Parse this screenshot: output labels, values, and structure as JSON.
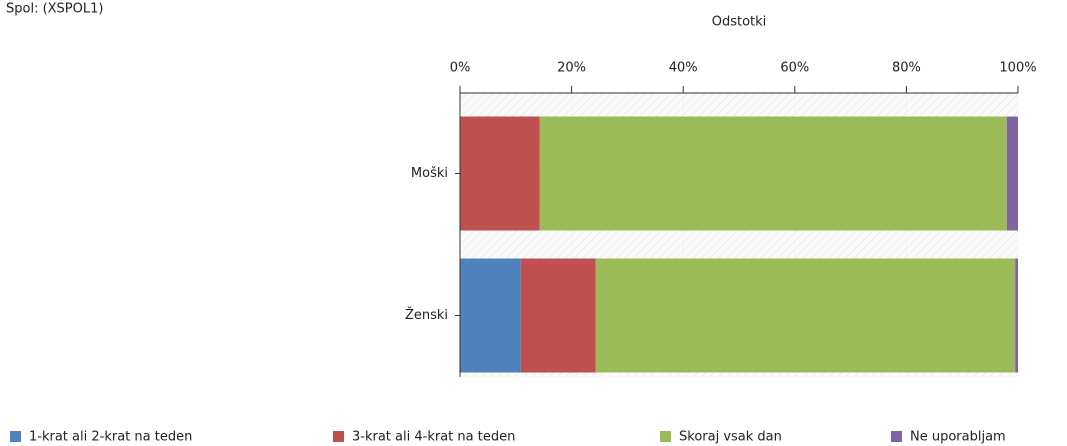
{
  "chart_data": {
    "type": "stacked-barh",
    "title": "Spol: (XSPOL1)",
    "x_label": "Odstotki",
    "categories": [
      "Moški",
      "Ženski"
    ],
    "series": [
      {
        "name": "1-krat ali 2-krat na teden",
        "color": "#4f81bd",
        "values": [
          0,
          10.9
        ]
      },
      {
        "name": "3-krat ali 4-krat na teden",
        "color": "#c0504d",
        "values": [
          14.3,
          13.4
        ]
      },
      {
        "name": "Skoraj vsak dan",
        "color": "#9bbb59",
        "values": [
          83.7,
          75.2
        ]
      },
      {
        "name": "Ne uporabljam",
        "color": "#8064a2",
        "values": [
          2.0,
          0.5
        ]
      }
    ],
    "xlim": [
      0,
      100
    ],
    "xticks": [
      {
        "value": 0,
        "label": "0%"
      },
      {
        "value": 20,
        "label": "20%"
      },
      {
        "value": 40,
        "label": "40%"
      },
      {
        "value": 60,
        "label": "60%"
      },
      {
        "value": 80,
        "label": "80%"
      },
      {
        "value": 100,
        "label": "100%"
      }
    ],
    "legend": "bottom"
  }
}
